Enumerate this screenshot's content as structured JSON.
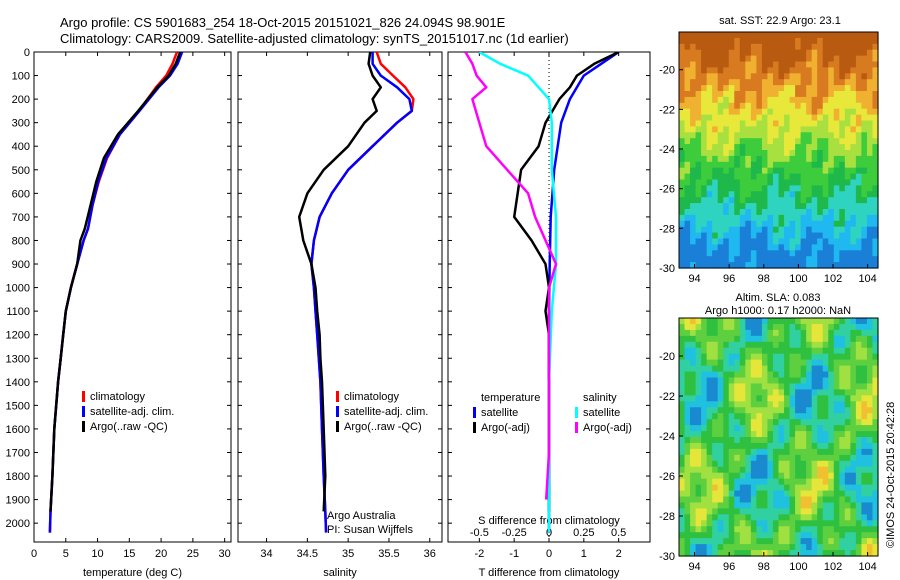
{
  "header": {
    "line1": "Argo profile: CS 5901683_254 18-Oct-2015 20151021_826 24.094S 98.901E",
    "line2": "Climatology: CARS2009. Satellite-adjusted climatology: synTS_20151017.nc (1d earlier)"
  },
  "colors": {
    "climatology": "#ff0000",
    "satellite": "#0000ff",
    "argo": "#000000",
    "sal_satellite": "#00ffff",
    "sal_argo": "#ff00ff"
  },
  "depth_ticks": [
    "0",
    "100",
    "200",
    "300",
    "400",
    "500",
    "600",
    "700",
    "800",
    "900",
    "1000",
    "1100",
    "1200",
    "1300",
    "1400",
    "1500",
    "1600",
    "1700",
    "1800",
    "1900",
    "2000"
  ],
  "chart_data": [
    {
      "type": "line",
      "xlabel": "temperature (deg C)",
      "ylabel": "",
      "xlim": [
        0,
        31
      ],
      "ylim": [
        2080,
        0
      ],
      "xticks": [
        "0",
        "5",
        "10",
        "15",
        "20",
        "25",
        "30"
      ],
      "xtick_values": [
        0,
        5,
        10,
        15,
        20,
        25,
        30
      ],
      "legend": [
        "climatology",
        "satellite-adj. clim.",
        "Argo(..raw -QC)"
      ],
      "series": [
        {
          "name": "climatology",
          "color": "#ff0000",
          "x": [
            22.5,
            21.8,
            20.8,
            19.2,
            16.5,
            13.5,
            11.5,
            10.2,
            9.2,
            8.5,
            7.8,
            6.8,
            5.8,
            5.0,
            4.6,
            4.2,
            3.8,
            3.2,
            2.9,
            2.6,
            2.5
          ],
          "y": [
            0,
            50,
            100,
            150,
            250,
            350,
            450,
            550,
            650,
            750,
            800,
            900,
            1000,
            1100,
            1200,
            1300,
            1400,
            1600,
            1800,
            1950,
            2040
          ]
        },
        {
          "name": "satellite-adj. clim.",
          "color": "#0000ff",
          "x": [
            23.3,
            22.6,
            21.4,
            19.6,
            16.6,
            13.5,
            11.4,
            10.1,
            9.2,
            8.5,
            7.8,
            6.8,
            5.8,
            5.0,
            4.6,
            4.2,
            3.8,
            3.2,
            2.9,
            2.6,
            2.5
          ],
          "y": [
            0,
            50,
            100,
            150,
            250,
            350,
            450,
            550,
            650,
            750,
            800,
            900,
            1000,
            1100,
            1200,
            1300,
            1400,
            1600,
            1800,
            1950,
            2040
          ]
        },
        {
          "name": "Argo(..raw -QC)",
          "color": "#000000",
          "x": [
            23.0,
            22.3,
            21.2,
            19.4,
            16.4,
            13.2,
            11.0,
            9.8,
            8.9,
            8.0,
            7.3,
            6.8,
            5.8,
            5.0,
            4.6,
            4.2,
            3.8,
            3.2,
            2.9,
            2.6
          ],
          "y": [
            0,
            50,
            100,
            150,
            250,
            350,
            450,
            550,
            650,
            750,
            800,
            900,
            1000,
            1100,
            1200,
            1300,
            1400,
            1600,
            1800,
            1950
          ]
        }
      ]
    },
    {
      "type": "line",
      "xlabel": "salinity",
      "ylabel": "",
      "xlim": [
        33.65,
        36.15
      ],
      "ylim": [
        2080,
        0
      ],
      "xticks": [
        "34",
        "34.5",
        "35",
        "35.5",
        "36"
      ],
      "xtick_values": [
        34,
        34.5,
        35,
        35.5,
        36
      ],
      "legend": [
        "climatology",
        "satellite-adj. clim.",
        "Argo(..raw -QC)"
      ],
      "annotations": [
        "Argo Australia",
        "PI: Susan Wijffels"
      ],
      "series": [
        {
          "name": "climatology",
          "color": "#ff0000",
          "x": [
            35.35,
            35.4,
            35.55,
            35.7,
            35.8,
            35.78,
            35.6,
            35.3,
            35.0,
            34.8,
            34.65,
            34.58,
            34.55,
            34.58,
            34.6,
            34.62,
            34.64,
            34.66,
            34.68,
            34.7,
            34.72,
            34.73
          ],
          "y": [
            0,
            50,
            100,
            150,
            200,
            250,
            300,
            400,
            500,
            600,
            700,
            800,
            900,
            1000,
            1100,
            1200,
            1300,
            1400,
            1600,
            1800,
            1950,
            2040
          ]
        },
        {
          "name": "satellite-adj. clim.",
          "color": "#0000ff",
          "x": [
            35.3,
            35.3,
            35.4,
            35.6,
            35.75,
            35.78,
            35.6,
            35.3,
            35.0,
            34.8,
            34.65,
            34.58,
            34.55,
            34.58,
            34.6,
            34.62,
            34.64,
            34.66,
            34.68,
            34.7,
            34.72,
            34.73
          ],
          "y": [
            0,
            50,
            100,
            150,
            200,
            250,
            300,
            400,
            500,
            600,
            700,
            800,
            900,
            1000,
            1100,
            1200,
            1300,
            1400,
            1600,
            1800,
            1950,
            2040
          ]
        },
        {
          "name": "Argo(..raw -QC)",
          "color": "#000000",
          "x": [
            35.27,
            35.25,
            35.3,
            35.4,
            35.3,
            35.35,
            35.2,
            35.0,
            34.7,
            34.5,
            34.4,
            34.45,
            34.55,
            34.6,
            34.62,
            34.65,
            34.66,
            34.68,
            34.7,
            34.72,
            34.7
          ],
          "y": [
            0,
            50,
            100,
            150,
            200,
            250,
            300,
            400,
            500,
            600,
            700,
            800,
            900,
            1000,
            1100,
            1200,
            1300,
            1400,
            1600,
            1800,
            1950
          ]
        }
      ]
    },
    {
      "type": "line",
      "xlabel": "T difference from climatology",
      "xlabel_top": "S difference from climatology",
      "xlim": [
        -2.9,
        2.9
      ],
      "ylim": [
        2080,
        0
      ],
      "xticks": [
        "-2",
        "-1",
        "0",
        "1",
        "2"
      ],
      "xtick_values": [
        -2,
        -1,
        0,
        1,
        2
      ],
      "xticks_top": [
        "-0.5",
        "-0.25",
        "0",
        "0.25",
        "0.5"
      ],
      "xtick_top_values": [
        -0.5,
        -0.25,
        0,
        0.25,
        0.5
      ],
      "legend_left_title": "temperature",
      "legend_right_title": "salinity",
      "legend": [
        "satellite",
        "Argo(-adj)",
        "satellite",
        "Argo(-adj)"
      ],
      "series": [
        {
          "name": "temperature satellite",
          "color": "#0000ff",
          "x": [
            2.0,
            1.5,
            1.0,
            0.8,
            0.6,
            0.35,
            0.15,
            0.05,
            0.02,
            0.0,
            0.0,
            0.0,
            0.0
          ],
          "y": [
            0,
            50,
            100,
            150,
            200,
            300,
            500,
            700,
            900,
            1100,
            1400,
            1700,
            2040
          ]
        },
        {
          "name": "temperature Argo(-adj)",
          "color": "#000000",
          "x": [
            2.0,
            1.3,
            0.8,
            0.6,
            0.3,
            -0.1,
            -0.3,
            -0.8,
            -1.0,
            -0.5,
            -0.1,
            0.0,
            -0.1,
            0.0,
            0.0,
            0.0,
            0.0
          ],
          "y": [
            0,
            50,
            100,
            150,
            200,
            300,
            400,
            500,
            700,
            800,
            900,
            1000,
            1100,
            1200,
            1400,
            1700,
            1950
          ]
        },
        {
          "name": "salinity satellite",
          "color": "#00ffff",
          "x": [
            -0.5,
            -0.35,
            -0.15,
            0.0,
            0.02,
            0.02,
            0.05,
            0.05,
            0.02,
            0.0,
            0.0,
            0.0
          ],
          "y": [
            0,
            50,
            100,
            200,
            300,
            500,
            700,
            900,
            1100,
            1400,
            1700,
            2040
          ]
        },
        {
          "name": "salinity Argo(-adj)",
          "color": "#ff00ff",
          "x": [
            -0.6,
            -0.55,
            -0.52,
            -0.45,
            -0.55,
            -0.5,
            -0.45,
            -0.3,
            -0.15,
            -0.1,
            0.05,
            0.0,
            0.0,
            0.0,
            0.0,
            -0.02
          ],
          "y": [
            0,
            50,
            100,
            150,
            200,
            300,
            400,
            500,
            600,
            700,
            900,
            1000,
            1100,
            1400,
            1700,
            1900
          ]
        }
      ]
    },
    {
      "type": "heatmap",
      "title": "sat. SST: 22.9 Argo: 23.1",
      "xlim": [
        93.1,
        104.6
      ],
      "ylim": [
        -30,
        -18.1
      ],
      "xticks": [
        "94",
        "96",
        "98",
        "100",
        "102",
        "104"
      ],
      "xtick_values": [
        94,
        96,
        98,
        100,
        102,
        104
      ],
      "yticks": [
        "-20",
        "-22",
        "-24",
        "-26",
        "-28",
        "-30"
      ],
      "ytick_values": [
        -20,
        -22,
        -24,
        -26,
        -28,
        -30
      ],
      "colorscale": [
        "#1a7fd6",
        "#20b8f0",
        "#2fd4c0",
        "#1fb84a",
        "#3ccc3c",
        "#a8e040",
        "#e8e83a",
        "#f0b030",
        "#d87a20",
        "#b85a10"
      ]
    },
    {
      "type": "heatmap",
      "title": "Altim. SLA: 0.083",
      "subtitle": "Argo h1000: 0.17 h2000: NaN",
      "xlim": [
        93.1,
        104.6
      ],
      "ylim": [
        -30,
        -18.1
      ],
      "xticks": [
        "94",
        "96",
        "98",
        "100",
        "102",
        "104"
      ],
      "xtick_values": [
        94,
        96,
        98,
        100,
        102,
        104
      ],
      "yticks": [
        "-20",
        "-22",
        "-24",
        "-26",
        "-28",
        "-30"
      ],
      "ytick_values": [
        -20,
        -22,
        -24,
        -26,
        -28,
        -30
      ],
      "colorscale": [
        "#1a8ad0",
        "#20c0e0",
        "#30d0a0",
        "#30c040",
        "#5ed040",
        "#a0e040",
        "#e6e63a",
        "#f0c030"
      ]
    }
  ],
  "credit": "©IMOS 24-Oct-2015 20:42:28"
}
